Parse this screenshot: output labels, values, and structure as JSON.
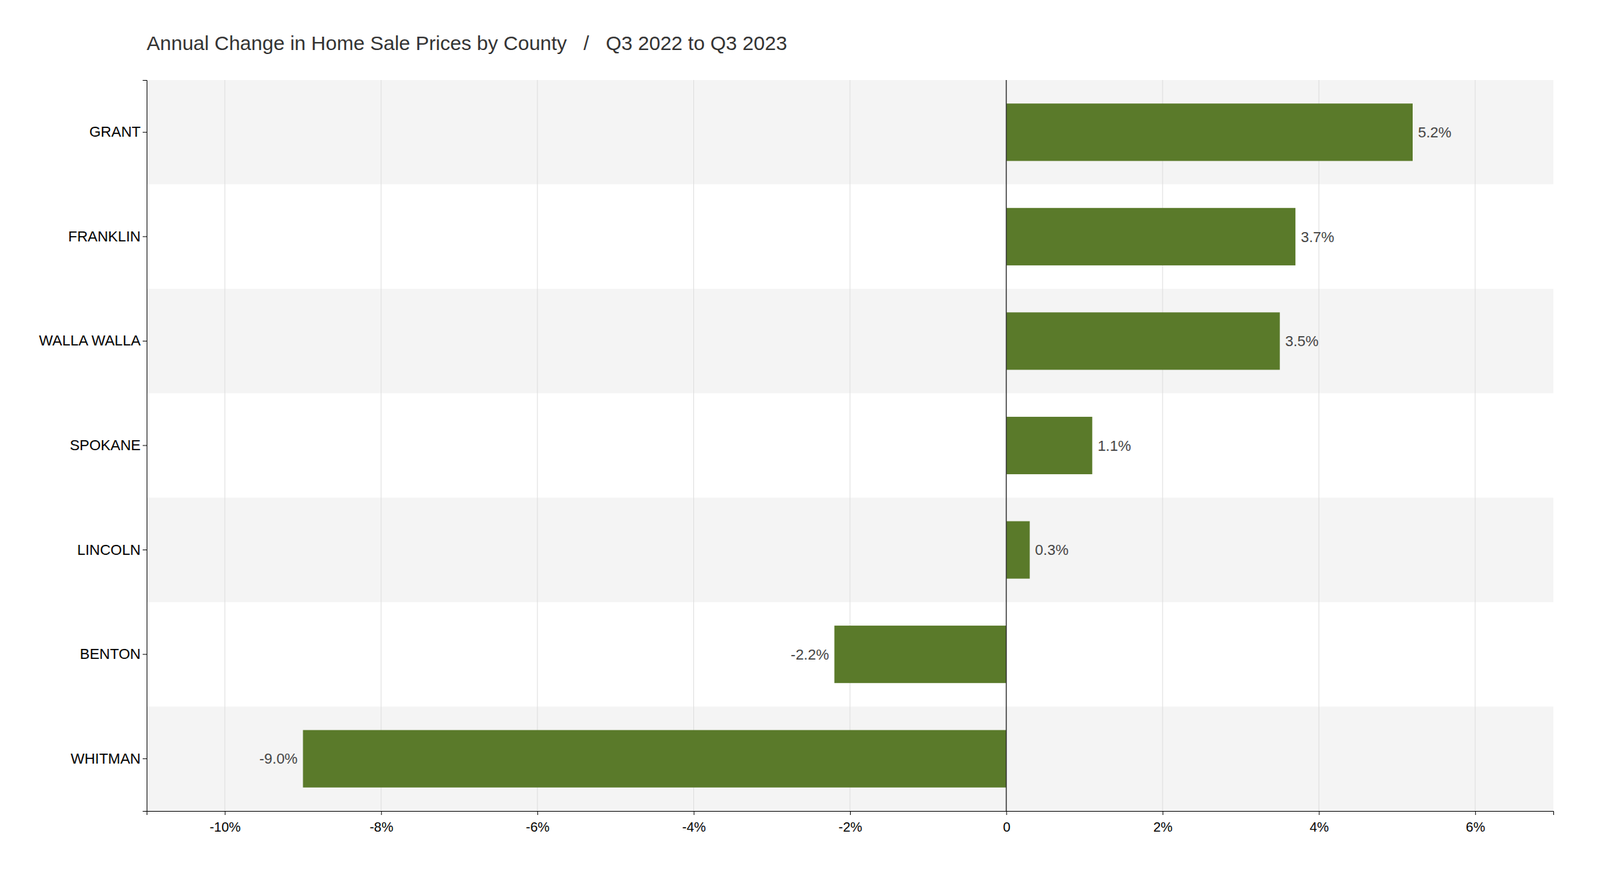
{
  "chart_data": {
    "type": "bar",
    "orientation": "horizontal",
    "title": "Annual Change in Home Sale Prices by County   /   Q3 2022 to Q3 2023",
    "categories": [
      "GRANT",
      "FRANKLIN",
      "WALLA WALLA",
      "SPOKANE",
      "LINCOLN",
      "BENTON",
      "WHITMAN"
    ],
    "values": [
      5.2,
      3.7,
      3.5,
      1.1,
      0.3,
      -2.2,
      -9.0
    ],
    "value_labels": [
      "5.2%",
      "3.7%",
      "3.5%",
      "1.1%",
      "0.3%",
      "-2.2%",
      "-9.0%"
    ],
    "data_labels": true,
    "color": "#5a7a2a",
    "xlim": [
      -11,
      7
    ],
    "xticks": [
      {
        "value": -10,
        "label": "-10%"
      },
      {
        "value": -8,
        "label": "-8%"
      },
      {
        "value": -6,
        "label": "-6%"
      },
      {
        "value": -4,
        "label": "-4%"
      },
      {
        "value": -2,
        "label": "-2%"
      },
      0,
      {
        "value": 2,
        "label": "2%"
      },
      {
        "value": 4,
        "label": "4%"
      },
      {
        "value": 6,
        "label": "6%"
      }
    ],
    "grid": true
  }
}
